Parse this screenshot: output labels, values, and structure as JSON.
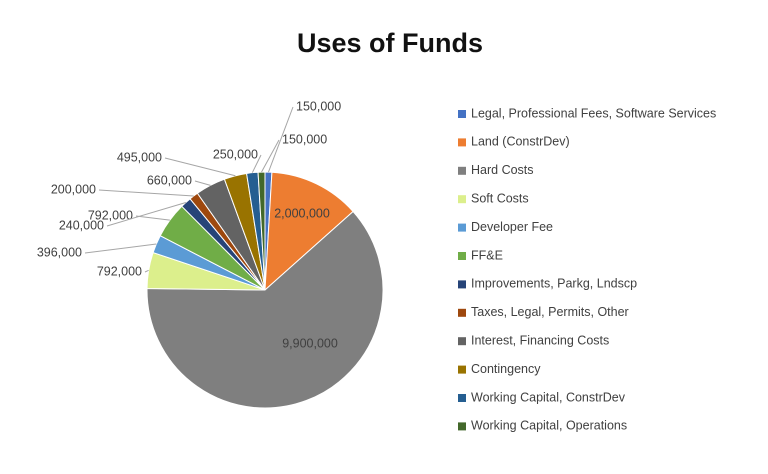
{
  "chart_data": {
    "type": "pie",
    "title": "Uses of Funds",
    "categories": [
      "Legal, Professional Fees, Software Services",
      "Land (ConstrDev)",
      "Hard Costs",
      "Soft Costs",
      "Developer Fee",
      "FF&E",
      "Improvements, Parkg, Lndscp",
      "Taxes, Legal, Permits, Other",
      "Interest, Financing Costs",
      "Contingency",
      "Working Capital, ConstrDev",
      "Working Capital, Operations"
    ],
    "values": [
      150000,
      2000000,
      9900000,
      792000,
      396000,
      792000,
      240000,
      200000,
      660000,
      495000,
      250000,
      150000
    ],
    "value_labels": [
      "150,000",
      "2,000,000",
      "9,900,000",
      "792,000",
      "396,000",
      "792,000",
      "240,000",
      "200,000",
      "660,000",
      "495,000",
      "250,000",
      "150,000"
    ],
    "colors": [
      "#4472c4",
      "#ed7d31",
      "#7f7f7f",
      "#dcef8c",
      "#5b9bd5",
      "#70ad47",
      "#264478",
      "#9e480e",
      "#636363",
      "#997300",
      "#255e91",
      "#43682b"
    ],
    "legend": "right"
  }
}
